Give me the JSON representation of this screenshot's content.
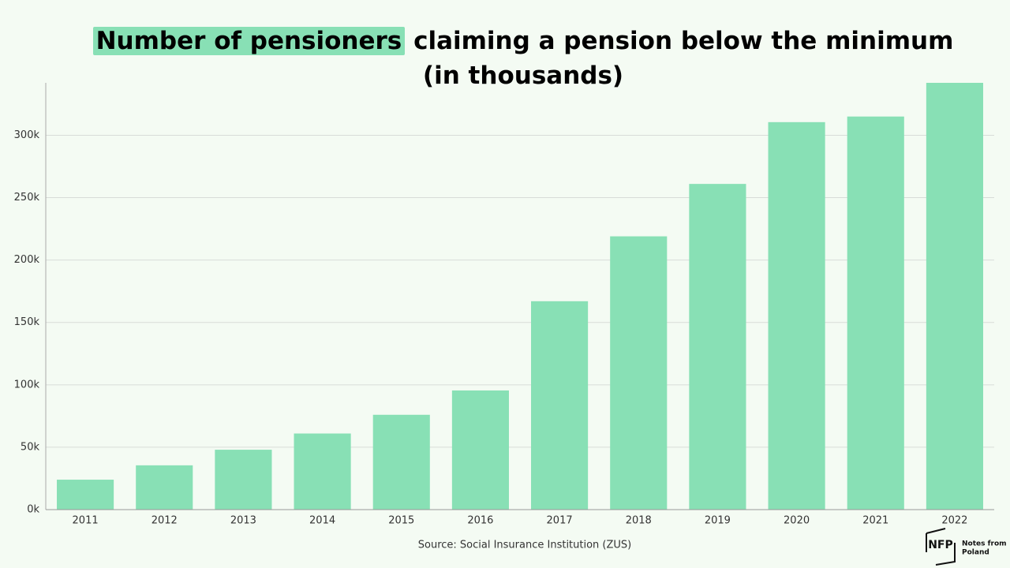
{
  "chart_data": {
    "type": "bar",
    "title": [
      "Number of pensioners",
      "claiming a pension below the minimum",
      "(in thousands)"
    ],
    "categories": [
      "2011",
      "2012",
      "2013",
      "2014",
      "2015",
      "2016",
      "2017",
      "2018",
      "2019",
      "2020",
      "2021",
      "2022"
    ],
    "values": [
      24000,
      35500,
      48000,
      61000,
      76000,
      95500,
      167000,
      219000,
      261000,
      310500,
      315000,
      342000
    ],
    "color": "#88e0b5",
    "ylim": [
      0,
      342000
    ],
    "yticks": [
      {
        "value": 0,
        "label": "0k"
      },
      {
        "value": 50000,
        "label": "50k"
      },
      {
        "value": 100000,
        "label": "100k"
      },
      {
        "value": 150000,
        "label": "150k"
      },
      {
        "value": 200000,
        "label": "200k"
      },
      {
        "value": 250000,
        "label": "250k"
      },
      {
        "value": 300000,
        "label": "300k"
      }
    ],
    "grid": true,
    "source": "Source: Social Insurance Institution (ZUS)"
  },
  "logo": {
    "mark": "NFP",
    "text": [
      "Notes from",
      "Poland"
    ]
  }
}
